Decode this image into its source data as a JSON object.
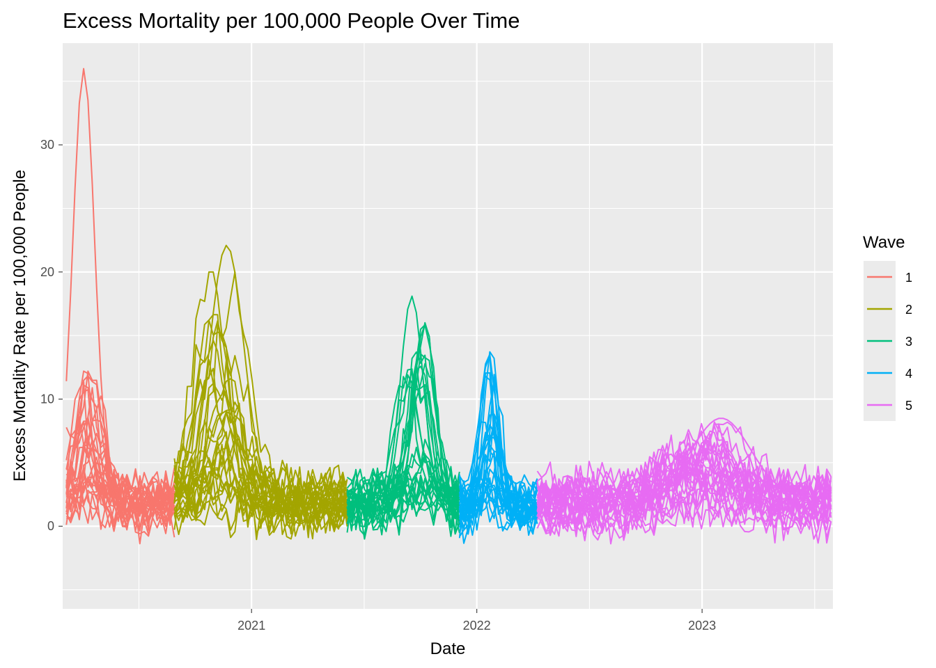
{
  "chart_data": {
    "type": "line",
    "title": "Excess Mortality per 100,000 People Over Time",
    "xlabel": "Date",
    "ylabel": "Excess Mortality Rate per 100,000 People",
    "x_ticks": [
      "2021",
      "2022",
      "2023"
    ],
    "x_tick_dates": [
      "2021-01-01",
      "2022-01-01",
      "2023-01-01"
    ],
    "y_ticks": [
      0,
      10,
      20,
      30
    ],
    "xlim": [
      "2020-03-01",
      "2023-08-01"
    ],
    "ylim": [
      -6.5,
      38
    ],
    "grid": true,
    "legend": {
      "title": "Wave",
      "position": "right"
    },
    "series": [
      {
        "name": "1",
        "color": "#F8766D",
        "start": "2020-03-07",
        "end": "2020-08-29",
        "peak_date": "2020-04-11",
        "peak": 36.0,
        "typical_range": [
          -3.2,
          12.2
        ]
      },
      {
        "name": "2",
        "color": "#A3A500",
        "start": "2020-08-29",
        "end": "2021-06-05",
        "peak_date": "2020-11-14",
        "peak": 22.1,
        "typical_range": [
          -4.4,
          20.0
        ]
      },
      {
        "name": "3",
        "color": "#00BF7D",
        "start": "2021-06-05",
        "end": "2021-12-04",
        "peak_date": "2021-09-25",
        "peak": 18.1,
        "typical_range": [
          -2.4,
          16.8
        ]
      },
      {
        "name": "4",
        "color": "#00B0F6",
        "start": "2021-12-04",
        "end": "2022-04-09",
        "peak_date": "2022-01-22",
        "peak": 14.0,
        "typical_range": [
          -2.6,
          13.8
        ]
      },
      {
        "name": "5",
        "color": "#E76BF3",
        "start": "2022-04-09",
        "end": "2023-07-29",
        "peak_date": "2022-12-24",
        "peak": 8.5,
        "typical_range": [
          -4.0,
          8.2
        ]
      }
    ]
  }
}
